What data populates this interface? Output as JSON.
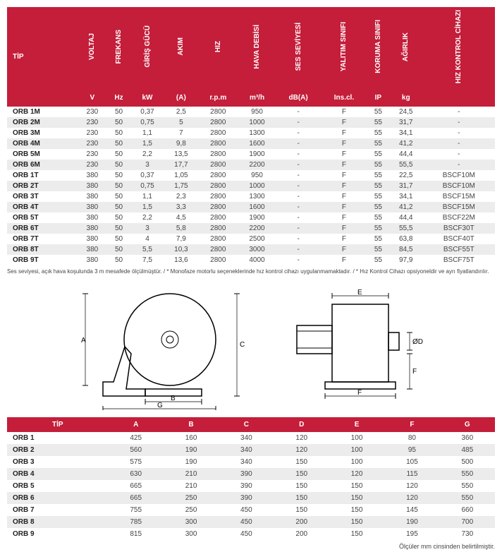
{
  "table1": {
    "tip_label": "TİP",
    "headers": [
      "VOLTAJ",
      "FREKANS",
      "GİRİŞ GÜCÜ",
      "AKIM",
      "HIZ",
      "HAVA DEBİSİ",
      "SES SEVİYESİ",
      "YALITIM SINIFI",
      "KORUMA SINIFI",
      "AĞIRLIK",
      "HIZ KONTROL CİHAZI"
    ],
    "units": [
      "V",
      "Hz",
      "kW",
      "(A)",
      "r.p.m",
      "m³/h",
      "dB(A)",
      "Ins.cl.",
      "IP",
      "kg",
      ""
    ],
    "rows": [
      [
        "ORB 1M",
        "230",
        "50",
        "0,37",
        "2,5",
        "2800",
        "950",
        "-",
        "F",
        "55",
        "24,5",
        "-"
      ],
      [
        "ORB 2M",
        "230",
        "50",
        "0,75",
        "5",
        "2800",
        "1000",
        "-",
        "F",
        "55",
        "31,7",
        "-"
      ],
      [
        "ORB 3M",
        "230",
        "50",
        "1,1",
        "7",
        "2800",
        "1300",
        "-",
        "F",
        "55",
        "34,1",
        "-"
      ],
      [
        "ORB 4M",
        "230",
        "50",
        "1,5",
        "9,8",
        "2800",
        "1600",
        "-",
        "F",
        "55",
        "41,2",
        "-"
      ],
      [
        "ORB 5M",
        "230",
        "50",
        "2,2",
        "13,5",
        "2800",
        "1900",
        "-",
        "F",
        "55",
        "44,4",
        "-"
      ],
      [
        "ORB 6M",
        "230",
        "50",
        "3",
        "17,7",
        "2800",
        "2200",
        "-",
        "F",
        "55",
        "55,5",
        "-"
      ],
      [
        "ORB 1T",
        "380",
        "50",
        "0,37",
        "1,05",
        "2800",
        "950",
        "-",
        "F",
        "55",
        "22,5",
        "BSCF10M"
      ],
      [
        "ORB 2T",
        "380",
        "50",
        "0,75",
        "1,75",
        "2800",
        "1000",
        "-",
        "F",
        "55",
        "31,7",
        "BSCF10M"
      ],
      [
        "ORB 3T",
        "380",
        "50",
        "1,1",
        "2,3",
        "2800",
        "1300",
        "-",
        "F",
        "55",
        "34,1",
        "BSCF15M"
      ],
      [
        "ORB 4T",
        "380",
        "50",
        "1,5",
        "3,3",
        "2800",
        "1600",
        "-",
        "F",
        "55",
        "41,2",
        "BSCF15M"
      ],
      [
        "ORB 5T",
        "380",
        "50",
        "2,2",
        "4,5",
        "2800",
        "1900",
        "-",
        "F",
        "55",
        "44,4",
        "BSCF22M"
      ],
      [
        "ORB 6T",
        "380",
        "50",
        "3",
        "5,8",
        "2800",
        "2200",
        "-",
        "F",
        "55",
        "55,5",
        "BSCF30T"
      ],
      [
        "ORB 7T",
        "380",
        "50",
        "4",
        "7,9",
        "2800",
        "2500",
        "-",
        "F",
        "55",
        "63,8",
        "BSCF40T"
      ],
      [
        "ORB 8T",
        "380",
        "50",
        "5,5",
        "10,3",
        "2800",
        "3000",
        "-",
        "F",
        "55",
        "84,5",
        "BSCF55T"
      ],
      [
        "ORB 9T",
        "380",
        "50",
        "7,5",
        "13,6",
        "2800",
        "4000",
        "-",
        "F",
        "55",
        "97,9",
        "BSCF75T"
      ]
    ]
  },
  "footnote": "Ses seviyesi, açık hava koşulunda 3 m mesafede ölçülmüştür. / * Monofaze motorlu seçeneklerinde hız kontrol cihazı uygulanmamaktadır. / * Hız Kontrol Cihazı opsiyoneldir ve ayrı fiyatlandırılır.",
  "table2": {
    "headers": [
      "TİP",
      "A",
      "B",
      "C",
      "D",
      "E",
      "F",
      "G"
    ],
    "rows": [
      [
        "ORB 1",
        "425",
        "160",
        "340",
        "120",
        "100",
        "80",
        "360"
      ],
      [
        "ORB 2",
        "560",
        "190",
        "340",
        "120",
        "100",
        "95",
        "485"
      ],
      [
        "ORB 3",
        "575",
        "190",
        "340",
        "150",
        "100",
        "105",
        "500"
      ],
      [
        "ORB 4",
        "630",
        "210",
        "390",
        "150",
        "120",
        "115",
        "550"
      ],
      [
        "ORB 5",
        "665",
        "210",
        "390",
        "150",
        "150",
        "120",
        "550"
      ],
      [
        "ORB 6",
        "665",
        "250",
        "390",
        "150",
        "150",
        "120",
        "550"
      ],
      [
        "ORB 7",
        "755",
        "250",
        "450",
        "150",
        "150",
        "145",
        "660"
      ],
      [
        "ORB 8",
        "785",
        "300",
        "450",
        "200",
        "150",
        "190",
        "700"
      ],
      [
        "ORB 9",
        "815",
        "300",
        "450",
        "200",
        "150",
        "195",
        "730"
      ]
    ]
  },
  "note_right": "Ölçüler mm cinsinden belirtilmiştir.",
  "diagram_labels": {
    "A": "A",
    "B": "B",
    "C": "C",
    "D": "ØD",
    "E": "E",
    "F": "F",
    "G": "G"
  }
}
